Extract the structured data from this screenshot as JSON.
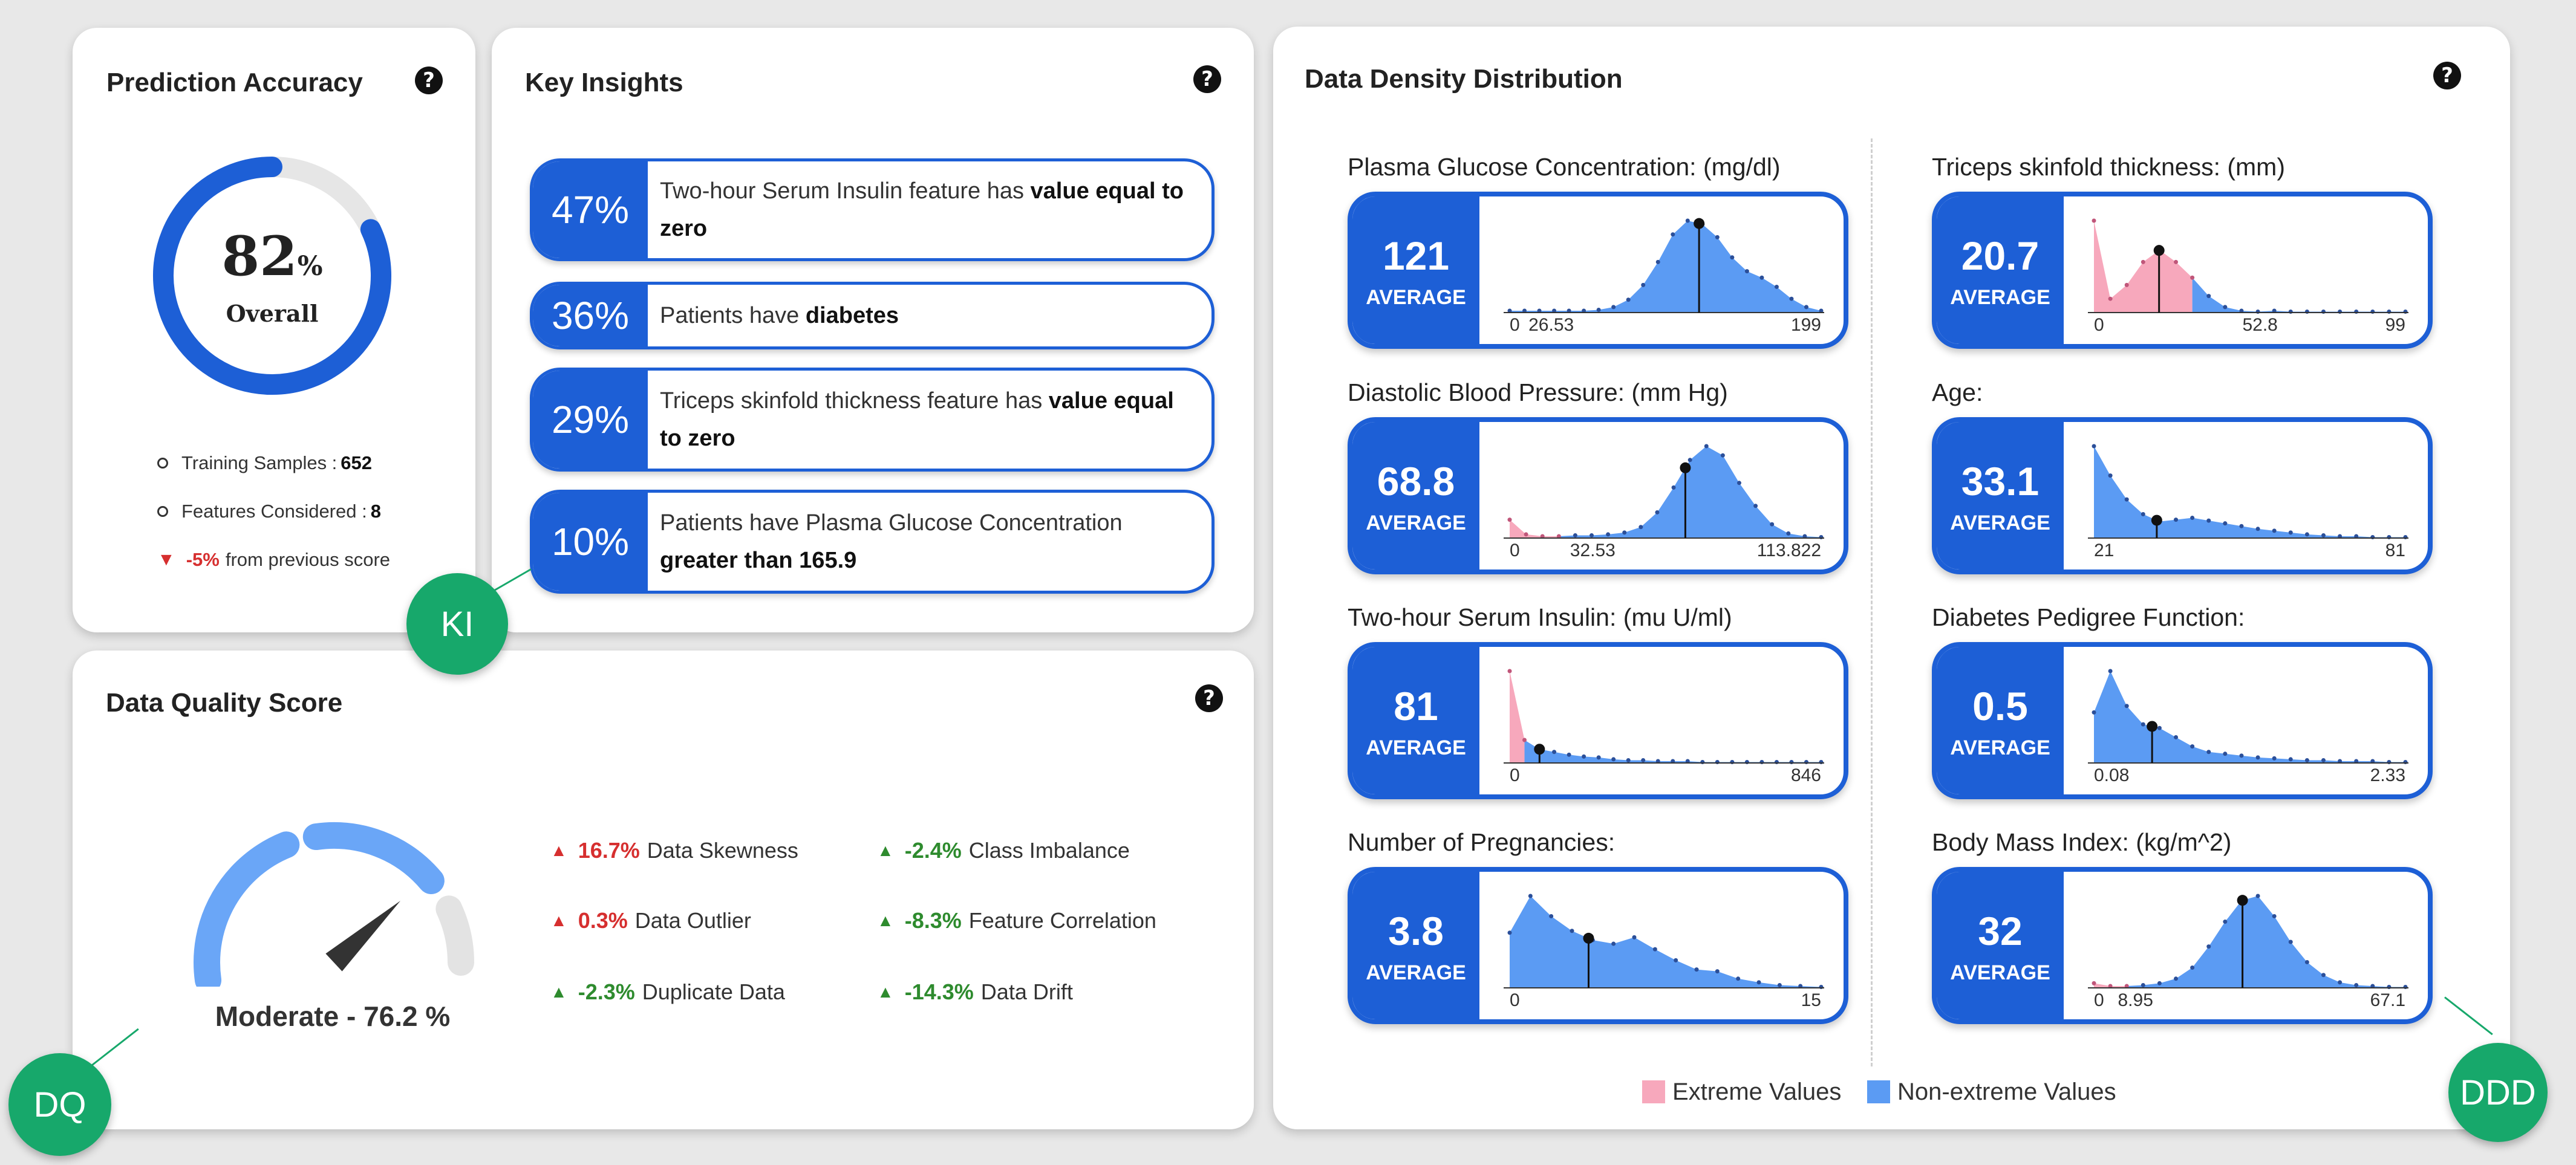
{
  "prediction_accuracy": {
    "title": "Prediction Accuracy",
    "value": "82",
    "unit": "%",
    "sublabel": "Overall",
    "fraction": 0.82,
    "training_label": "Training Samples :",
    "training_value": "652",
    "features_label": "Features Considered :",
    "features_value": "8",
    "change_value": "-5%",
    "change_label": "from previous score",
    "colors": {
      "arc": "#1d5fd6",
      "track": "#e6e6e6",
      "down": "#d62f2f"
    }
  },
  "key_insights": {
    "title": "Key Insights",
    "items": [
      {
        "pct": "47%",
        "text": "Two-hour Serum Insulin feature has ",
        "bold": "value equal to zero"
      },
      {
        "pct": "36%",
        "text": "Patients have ",
        "bold": "diabetes"
      },
      {
        "pct": "29%",
        "text": "Triceps skinfold thickness feature has ",
        "bold": "value equal to zero"
      },
      {
        "pct": "10%",
        "text": "Patients have Plasma Glucose Concentration ",
        "bold": "greater than 165.9"
      }
    ]
  },
  "data_quality": {
    "title": "Data Quality Score",
    "gauge_label": "Moderate - 76.2 %",
    "score": 76.2,
    "metrics": [
      {
        "value": "16.7%",
        "label": "Data Skewness",
        "status": "bad"
      },
      {
        "value": "-2.4%",
        "label": "Class Imbalance",
        "status": "good"
      },
      {
        "value": "0.3%",
        "label": "Data Outlier",
        "status": "bad"
      },
      {
        "value": "-8.3%",
        "label": "Feature Correlation",
        "status": "good"
      },
      {
        "value": "-2.3%",
        "label": "Duplicate Data",
        "status": "good"
      },
      {
        "value": "-14.3%",
        "label": "Data Drift",
        "status": "good"
      }
    ],
    "colors": {
      "segment_active": "#6aa6f7",
      "segment_inactive": "#e3e3e3",
      "needle": "#333333"
    }
  },
  "density": {
    "title": "Data Density Distribution",
    "avg_label": "AVERAGE",
    "legend": {
      "extreme": "Extreme Values",
      "non_extreme": "Non-extreme Values"
    },
    "colors": {
      "extreme": "#f7a8bc",
      "non_extreme": "#5b9bf3",
      "accent": "#1d5fd6"
    },
    "features": [
      {
        "name": "Plasma Glucose Concentration: (mg/dl)",
        "average": "121",
        "ticks": [
          "0",
          "26.53",
          "199"
        ],
        "min": 0,
        "max": 199,
        "mean": 121,
        "extreme_until": 0,
        "density": [
          0.02,
          0.02,
          0.02,
          0.02,
          0.02,
          0.02,
          0.03,
          0.06,
          0.14,
          0.3,
          0.55,
          0.85,
          1.0,
          0.96,
          0.82,
          0.6,
          0.45,
          0.38,
          0.28,
          0.15,
          0.06,
          0.02
        ]
      },
      {
        "name": "Triceps skinfold thickness: (mm)",
        "average": "20.7",
        "ticks": [
          "0",
          "52.8",
          "99"
        ],
        "min": 0,
        "max": 99,
        "mean": 20.7,
        "extreme_until": 6,
        "density": [
          1.0,
          0.15,
          0.3,
          0.55,
          0.68,
          0.55,
          0.38,
          0.18,
          0.06,
          0.02,
          0.01,
          0.02,
          0.01,
          0.01,
          0.01,
          0.01,
          0.01,
          0.01,
          0.01,
          0.01
        ]
      },
      {
        "name": "Diastolic Blood Pressure: (mm Hg)",
        "average": "68.8",
        "ticks": [
          "0",
          "32.53",
          "113.822"
        ],
        "min": 0,
        "max": 122,
        "mean": 68.8,
        "extreme_until": 3,
        "density": [
          0.2,
          0.04,
          0.02,
          0.02,
          0.03,
          0.03,
          0.04,
          0.06,
          0.12,
          0.28,
          0.55,
          0.85,
          1.0,
          0.9,
          0.6,
          0.35,
          0.15,
          0.05,
          0.02,
          0.01
        ]
      },
      {
        "name": "Age:",
        "average": "33.1",
        "ticks": [
          "21",
          "81"
        ],
        "min": 21,
        "max": 81,
        "mean": 33.1,
        "extreme_until": 0,
        "density": [
          1.0,
          0.68,
          0.42,
          0.26,
          0.18,
          0.2,
          0.22,
          0.19,
          0.16,
          0.13,
          0.1,
          0.08,
          0.06,
          0.04,
          0.03,
          0.02,
          0.02,
          0.01,
          0.01,
          0.01
        ]
      },
      {
        "name": "Two-hour Serum Insulin: (mu U/ml)",
        "average": "81",
        "ticks": [
          "0",
          "846"
        ],
        "min": 0,
        "max": 846,
        "mean": 81,
        "extreme_until": 1,
        "density": [
          1.0,
          0.25,
          0.15,
          0.12,
          0.09,
          0.07,
          0.06,
          0.04,
          0.03,
          0.03,
          0.02,
          0.02,
          0.02,
          0.01,
          0.01,
          0.01,
          0.01,
          0.01,
          0.01,
          0.01,
          0.01,
          0.01
        ]
      },
      {
        "name": "Diabetes Pedigree Function:",
        "average": "0.5",
        "ticks": [
          "0.08",
          "2.33"
        ],
        "min": 0.08,
        "max": 2.33,
        "mean": 0.5,
        "extreme_until": 0,
        "density": [
          0.55,
          1.0,
          0.62,
          0.42,
          0.38,
          0.28,
          0.18,
          0.12,
          0.1,
          0.08,
          0.06,
          0.05,
          0.04,
          0.03,
          0.03,
          0.02,
          0.02,
          0.02,
          0.01,
          0.01
        ]
      },
      {
        "name": "Number of Pregnancies:",
        "average": "3.8",
        "ticks": [
          "0",
          "15"
        ],
        "min": 0,
        "max": 15,
        "mean": 3.8,
        "extreme_until": 0,
        "density": [
          0.6,
          1.0,
          0.78,
          0.62,
          0.52,
          0.48,
          0.55,
          0.42,
          0.3,
          0.2,
          0.18,
          0.1,
          0.06,
          0.03,
          0.02,
          0.01
        ]
      },
      {
        "name": "Body Mass Index: (kg/m^2)",
        "average": "32",
        "ticks": [
          "0",
          "8.95",
          "67.1"
        ],
        "min": 0,
        "max": 67.1,
        "mean": 32,
        "extreme_until": 2,
        "density": [
          0.05,
          0.02,
          0.02,
          0.03,
          0.05,
          0.1,
          0.22,
          0.45,
          0.72,
          0.95,
          1.0,
          0.78,
          0.5,
          0.28,
          0.14,
          0.06,
          0.03,
          0.02,
          0.01,
          0.01
        ]
      }
    ]
  },
  "badges": {
    "ki": "KI",
    "dq": "DQ",
    "ddd": "DDD"
  }
}
